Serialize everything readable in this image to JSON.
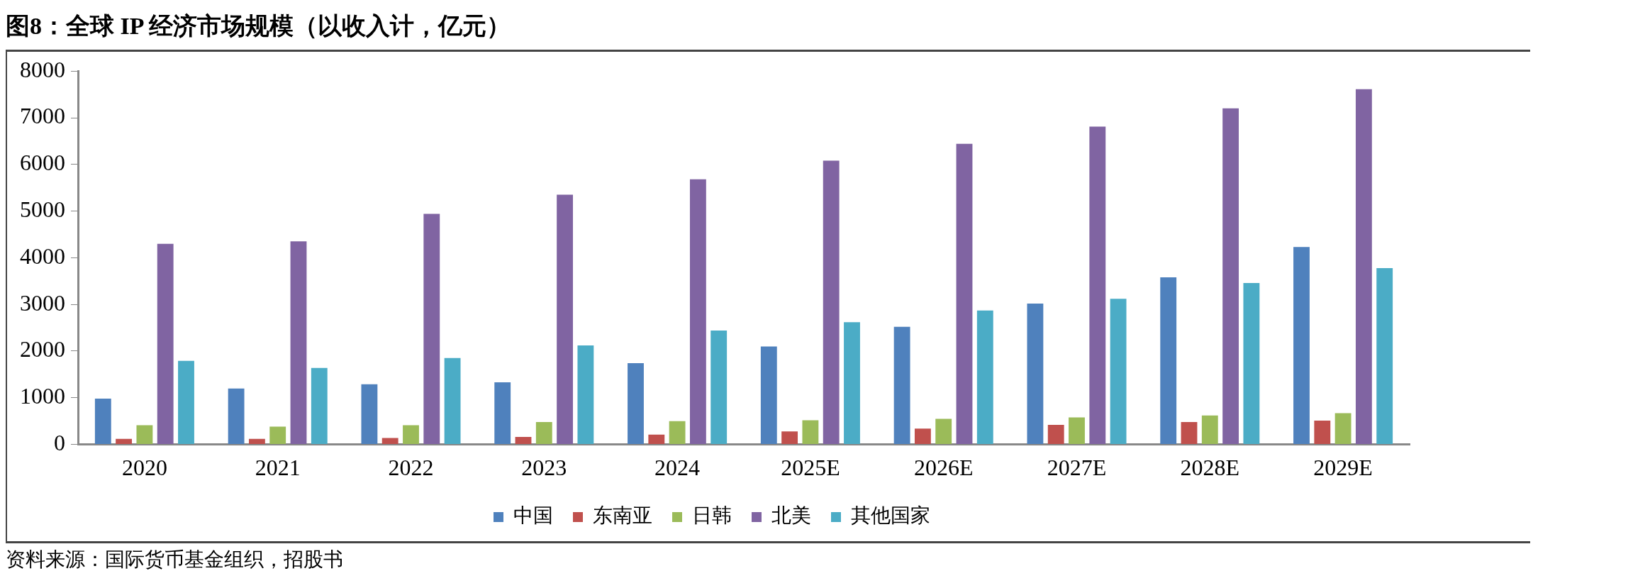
{
  "chart_data": {
    "type": "bar",
    "title": "图8：全球 IP 经济市场规模（以收入计，亿元）",
    "categories": [
      "2020",
      "2021",
      "2022",
      "2023",
      "2024",
      "2025E",
      "2026E",
      "2027E",
      "2028E",
      "2029E"
    ],
    "series": [
      {
        "name": "中国",
        "color": "#4f81bd",
        "values": [
          980,
          1200,
          1290,
          1330,
          1740,
          2100,
          2520,
          3020,
          3580,
          4230
        ]
      },
      {
        "name": "东南亚",
        "color": "#c0504d",
        "values": [
          120,
          120,
          140,
          160,
          210,
          280,
          340,
          420,
          480,
          510
        ]
      },
      {
        "name": "日韩",
        "color": "#9bbb59",
        "values": [
          410,
          380,
          410,
          480,
          500,
          520,
          550,
          580,
          620,
          670
        ]
      },
      {
        "name": "北美",
        "color": "#8064a2",
        "values": [
          4300,
          4350,
          4940,
          5350,
          5680,
          6080,
          6440,
          6810,
          7200,
          7610
        ]
      },
      {
        "name": "其他国家",
        "color": "#4bacc6",
        "values": [
          1790,
          1640,
          1850,
          2120,
          2440,
          2620,
          2870,
          3120,
          3460,
          3780
        ]
      }
    ],
    "ylim": [
      0,
      8000
    ],
    "yticks": [
      0,
      1000,
      2000,
      3000,
      4000,
      5000,
      6000,
      7000,
      8000
    ],
    "grid": false,
    "legend": "bottom",
    "annotations": [
      "资料来源：国际货币基金组织，招股书"
    ]
  }
}
